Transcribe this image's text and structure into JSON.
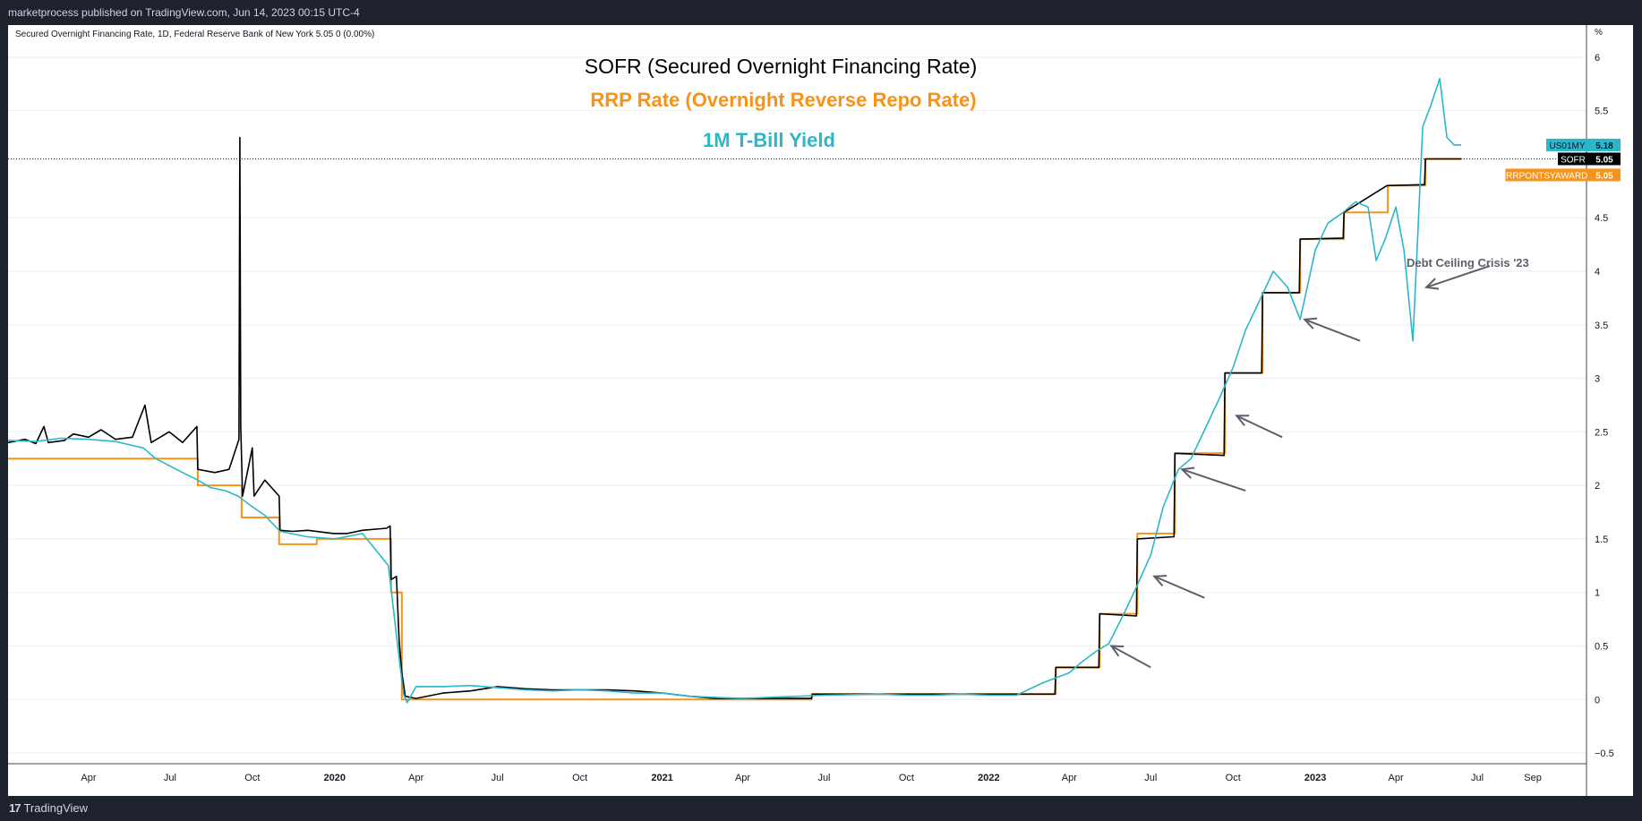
{
  "header": {
    "published_text": "marketprocess published on TradingView.com, Jun 14, 2023 00:15 UTC-4"
  },
  "footer": {
    "logo_mark": "17",
    "logo_text": "TradingView"
  },
  "chart_data": {
    "type": "line",
    "symbol_info": "Secured Overnight Financing Rate, 1D, Federal Reserve Bank of New York  5.05  0 (0.00%)",
    "unit_label": "%",
    "annotations": {
      "title_sofr": "SOFR (Secured Overnight Financing Rate)",
      "title_rrp": "RRP Rate (Overnight Reverse Repo Rate)",
      "title_tbill": "1M T-Bill Yield",
      "debt_ceiling": "Debt Ceiling Crisis '23"
    },
    "colors": {
      "sofr": "#000000",
      "rrp": "#f7931a",
      "tbill": "#2ab7ca",
      "arrow": "#5d606b",
      "grid": "#eceef2"
    },
    "x_axis": {
      "start": "2019-01-01",
      "end": "2023-10-31",
      "ticks": [
        {
          "label": "Apr",
          "date": "2019-04-01"
        },
        {
          "label": "Jul",
          "date": "2019-07-01"
        },
        {
          "label": "Oct",
          "date": "2019-10-01"
        },
        {
          "label": "2020",
          "date": "2020-01-01",
          "bold": true
        },
        {
          "label": "Apr",
          "date": "2020-04-01"
        },
        {
          "label": "Jul",
          "date": "2020-07-01"
        },
        {
          "label": "Oct",
          "date": "2020-10-01"
        },
        {
          "label": "2021",
          "date": "2021-01-01",
          "bold": true
        },
        {
          "label": "Apr",
          "date": "2021-04-01"
        },
        {
          "label": "Jul",
          "date": "2021-07-01"
        },
        {
          "label": "Oct",
          "date": "2021-10-01"
        },
        {
          "label": "2022",
          "date": "2022-01-01",
          "bold": true
        },
        {
          "label": "Apr",
          "date": "2022-04-01"
        },
        {
          "label": "Jul",
          "date": "2022-07-01"
        },
        {
          "label": "Oct",
          "date": "2022-10-01"
        },
        {
          "label": "2023",
          "date": "2023-01-01",
          "bold": true
        },
        {
          "label": "Apr",
          "date": "2023-04-01"
        },
        {
          "label": "Jul",
          "date": "2023-07-01"
        },
        {
          "label": "Sep",
          "date": "2023-09-01"
        }
      ]
    },
    "y_axis": {
      "ylim": [
        -0.6,
        6.3
      ],
      "ticks": [
        {
          "label": "6",
          "value": 6
        },
        {
          "label": "5.5",
          "value": 5.5
        },
        {
          "label": "4.5",
          "value": 4.5
        },
        {
          "label": "4",
          "value": 4
        },
        {
          "label": "3.5",
          "value": 3.5
        },
        {
          "label": "3",
          "value": 3
        },
        {
          "label": "2.5",
          "value": 2.5
        },
        {
          "label": "2",
          "value": 2
        },
        {
          "label": "1.5",
          "value": 1.5
        },
        {
          "label": "1",
          "value": 1
        },
        {
          "label": "0.5",
          "value": 0.5
        },
        {
          "label": "0",
          "value": 0
        },
        {
          "label": "−0.5",
          "value": -0.5
        }
      ]
    },
    "last_value_line": 5.05,
    "price_tags": [
      {
        "name": "US01MY",
        "value": "5.18",
        "y": 5.18,
        "color": "#2ab7ca"
      },
      {
        "name": "SOFR",
        "value": "5.05",
        "y": 5.05,
        "color": "#000000"
      },
      {
        "name": "RRPONTSYAWARD",
        "value": "5.05",
        "y": 4.9,
        "color": "#f7931a"
      }
    ],
    "series": [
      {
        "name": "RRP",
        "key": "rrp",
        "step": true,
        "points": [
          [
            "2019-01-01",
            2.25
          ],
          [
            "2019-08-01",
            2.0
          ],
          [
            "2019-09-19",
            1.7
          ],
          [
            "2019-10-31",
            1.45
          ],
          [
            "2019-12-12",
            1.5
          ],
          [
            "2020-03-04",
            1.0
          ],
          [
            "2020-03-16",
            0.0
          ],
          [
            "2021-06-17",
            0.05
          ],
          [
            "2022-03-17",
            0.3
          ],
          [
            "2022-05-05",
            0.8
          ],
          [
            "2022-06-16",
            1.55
          ],
          [
            "2022-07-28",
            2.3
          ],
          [
            "2022-09-22",
            3.05
          ],
          [
            "2022-11-03",
            3.8
          ],
          [
            "2022-12-15",
            4.3
          ],
          [
            "2023-02-02",
            4.55
          ],
          [
            "2023-03-23",
            4.8
          ],
          [
            "2023-05-04",
            5.05
          ],
          [
            "2023-06-13",
            5.05
          ]
        ]
      },
      {
        "name": "SOFR",
        "key": "sofr",
        "step": false,
        "points": [
          [
            "2019-01-01",
            2.4
          ],
          [
            "2019-01-20",
            2.43
          ],
          [
            "2019-02-01",
            2.39
          ],
          [
            "2019-02-10",
            2.55
          ],
          [
            "2019-02-15",
            2.4
          ],
          [
            "2019-03-05",
            2.42
          ],
          [
            "2019-03-15",
            2.48
          ],
          [
            "2019-04-01",
            2.45
          ],
          [
            "2019-04-15",
            2.52
          ],
          [
            "2019-05-01",
            2.43
          ],
          [
            "2019-05-20",
            2.45
          ],
          [
            "2019-06-03",
            2.75
          ],
          [
            "2019-06-10",
            2.4
          ],
          [
            "2019-06-30",
            2.5
          ],
          [
            "2019-07-15",
            2.4
          ],
          [
            "2019-07-31",
            2.55
          ],
          [
            "2019-08-01",
            2.15
          ],
          [
            "2019-08-20",
            2.12
          ],
          [
            "2019-09-05",
            2.15
          ],
          [
            "2019-09-16",
            2.43
          ],
          [
            "2019-09-17",
            5.25
          ],
          [
            "2019-09-18",
            2.55
          ],
          [
            "2019-09-20",
            1.9
          ],
          [
            "2019-10-01",
            2.35
          ],
          [
            "2019-10-03",
            1.9
          ],
          [
            "2019-10-15",
            2.05
          ],
          [
            "2019-10-31",
            1.9
          ],
          [
            "2019-11-01",
            1.58
          ],
          [
            "2019-11-15",
            1.57
          ],
          [
            "2019-12-02",
            1.58
          ],
          [
            "2019-12-31",
            1.55
          ],
          [
            "2020-01-15",
            1.55
          ],
          [
            "2020-02-01",
            1.58
          ],
          [
            "2020-02-28",
            1.6
          ],
          [
            "2020-03-03",
            1.62
          ],
          [
            "2020-03-04",
            1.12
          ],
          [
            "2020-03-10",
            1.15
          ],
          [
            "2020-03-13",
            0.55
          ],
          [
            "2020-03-16",
            0.25
          ],
          [
            "2020-03-20",
            0.03
          ],
          [
            "2020-04-01",
            0.01
          ],
          [
            "2020-05-01",
            0.06
          ],
          [
            "2020-06-01",
            0.08
          ],
          [
            "2020-07-01",
            0.12
          ],
          [
            "2020-08-01",
            0.1
          ],
          [
            "2020-09-01",
            0.09
          ],
          [
            "2020-10-01",
            0.09
          ],
          [
            "2020-11-01",
            0.09
          ],
          [
            "2020-12-01",
            0.08
          ],
          [
            "2021-01-01",
            0.06
          ],
          [
            "2021-02-01",
            0.03
          ],
          [
            "2021-03-01",
            0.01
          ],
          [
            "2021-06-17",
            0.01
          ],
          [
            "2021-06-18",
            0.05
          ],
          [
            "2022-03-16",
            0.05
          ],
          [
            "2022-03-17",
            0.3
          ],
          [
            "2022-05-04",
            0.3
          ],
          [
            "2022-05-05",
            0.8
          ],
          [
            "2022-06-15",
            0.78
          ],
          [
            "2022-06-16",
            1.5
          ],
          [
            "2022-07-27",
            1.52
          ],
          [
            "2022-07-28",
            2.3
          ],
          [
            "2022-09-21",
            2.28
          ],
          [
            "2022-09-22",
            3.05
          ],
          [
            "2022-11-02",
            3.05
          ],
          [
            "2022-11-03",
            3.8
          ],
          [
            "2022-12-14",
            3.8
          ],
          [
            "2022-12-15",
            4.3
          ],
          [
            "2023-02-01",
            4.31
          ],
          [
            "2023-02-02",
            4.55
          ],
          [
            "2023-03-22",
            4.8
          ],
          [
            "2023-03-23",
            4.8
          ],
          [
            "2023-05-03",
            4.81
          ],
          [
            "2023-05-04",
            5.05
          ],
          [
            "2023-06-13",
            5.05
          ]
        ]
      },
      {
        "name": "1M T-Bill",
        "key": "tbill",
        "step": false,
        "points": [
          [
            "2019-01-01",
            2.42
          ],
          [
            "2019-02-01",
            2.41
          ],
          [
            "2019-03-01",
            2.44
          ],
          [
            "2019-04-01",
            2.43
          ],
          [
            "2019-05-01",
            2.41
          ],
          [
            "2019-06-01",
            2.35
          ],
          [
            "2019-06-15",
            2.25
          ],
          [
            "2019-07-01",
            2.18
          ],
          [
            "2019-07-15",
            2.12
          ],
          [
            "2019-08-01",
            2.05
          ],
          [
            "2019-08-15",
            1.98
          ],
          [
            "2019-09-01",
            1.95
          ],
          [
            "2019-09-15",
            1.9
          ],
          [
            "2019-10-01",
            1.8
          ],
          [
            "2019-10-15",
            1.72
          ],
          [
            "2019-11-01",
            1.57
          ],
          [
            "2019-12-01",
            1.52
          ],
          [
            "2020-01-01",
            1.5
          ],
          [
            "2020-02-01",
            1.55
          ],
          [
            "2020-03-01",
            1.25
          ],
          [
            "2020-03-10",
            0.6
          ],
          [
            "2020-03-18",
            0.05
          ],
          [
            "2020-03-22",
            -0.03
          ],
          [
            "2020-04-01",
            0.12
          ],
          [
            "2020-05-01",
            0.12
          ],
          [
            "2020-06-01",
            0.13
          ],
          [
            "2020-07-01",
            0.11
          ],
          [
            "2020-08-01",
            0.09
          ],
          [
            "2020-09-01",
            0.08
          ],
          [
            "2020-10-01",
            0.09
          ],
          [
            "2020-11-01",
            0.08
          ],
          [
            "2020-12-01",
            0.06
          ],
          [
            "2021-01-01",
            0.06
          ],
          [
            "2021-02-01",
            0.03
          ],
          [
            "2021-03-01",
            0.02
          ],
          [
            "2021-04-01",
            0.01
          ],
          [
            "2021-07-01",
            0.04
          ],
          [
            "2021-09-01",
            0.05
          ],
          [
            "2021-10-01",
            0.04
          ],
          [
            "2021-11-01",
            0.04
          ],
          [
            "2021-12-01",
            0.05
          ],
          [
            "2022-01-01",
            0.04
          ],
          [
            "2022-02-01",
            0.04
          ],
          [
            "2022-03-01",
            0.15
          ],
          [
            "2022-04-01",
            0.25
          ],
          [
            "2022-04-15",
            0.35
          ],
          [
            "2022-05-01",
            0.45
          ],
          [
            "2022-05-15",
            0.52
          ],
          [
            "2022-06-01",
            0.8
          ],
          [
            "2022-06-15",
            1.05
          ],
          [
            "2022-07-01",
            1.35
          ],
          [
            "2022-07-15",
            1.8
          ],
          [
            "2022-08-01",
            2.15
          ],
          [
            "2022-08-15",
            2.25
          ],
          [
            "2022-09-01",
            2.55
          ],
          [
            "2022-09-15",
            2.8
          ],
          [
            "2022-10-01",
            3.1
          ],
          [
            "2022-10-15",
            3.45
          ],
          [
            "2022-11-01",
            3.75
          ],
          [
            "2022-11-15",
            4.0
          ],
          [
            "2022-12-01",
            3.85
          ],
          [
            "2022-12-15",
            3.55
          ],
          [
            "2023-01-01",
            4.2
          ],
          [
            "2023-01-15",
            4.45
          ],
          [
            "2023-02-01",
            4.55
          ],
          [
            "2023-02-15",
            4.65
          ],
          [
            "2023-03-01",
            4.6
          ],
          [
            "2023-03-10",
            4.1
          ],
          [
            "2023-03-20",
            4.3
          ],
          [
            "2023-04-01",
            4.6
          ],
          [
            "2023-04-10",
            4.2
          ],
          [
            "2023-04-20",
            3.35
          ],
          [
            "2023-05-01",
            5.35
          ],
          [
            "2023-05-10",
            5.55
          ],
          [
            "2023-05-20",
            5.8
          ],
          [
            "2023-05-28",
            5.25
          ],
          [
            "2023-06-05",
            5.18
          ],
          [
            "2023-06-13",
            5.18
          ]
        ]
      }
    ],
    "arrows": [
      {
        "from": [
          "2022-07-01",
          0.3
        ],
        "to": [
          "2022-05-18",
          0.5
        ]
      },
      {
        "from": [
          "2022-08-30",
          0.95
        ],
        "to": [
          "2022-07-05",
          1.15
        ]
      },
      {
        "from": [
          "2022-10-15",
          1.95
        ],
        "to": [
          "2022-08-05",
          2.15
        ]
      },
      {
        "from": [
          "2022-11-25",
          2.45
        ],
        "to": [
          "2022-10-05",
          2.65
        ]
      },
      {
        "from": [
          "2023-02-20",
          3.35
        ],
        "to": [
          "2022-12-20",
          3.55
        ]
      },
      {
        "from": [
          "2023-07-15",
          4.05
        ],
        "to": [
          "2023-05-05",
          3.85
        ]
      }
    ]
  }
}
